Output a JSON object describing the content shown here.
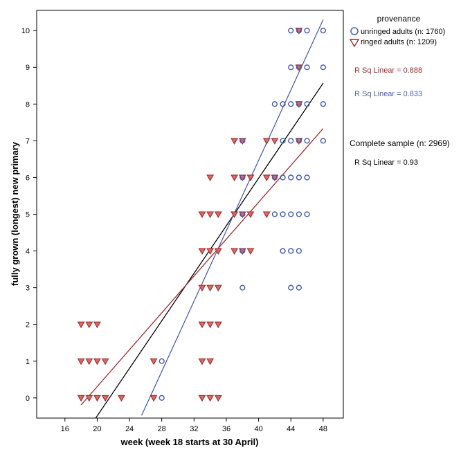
{
  "chart_data": {
    "type": "scatter",
    "xlabel": "week (week 18 starts at 30 April)",
    "ylabel": "fully grown (longest) new primary",
    "xlim": [
      12.5,
      50.5
    ],
    "ylim": [
      -0.55,
      10.55
    ],
    "x_ticks": [
      16,
      20,
      24,
      28,
      32,
      36,
      40,
      44,
      48
    ],
    "y_ticks": [
      0,
      1,
      2,
      3,
      4,
      5,
      6,
      7,
      8,
      9,
      10
    ],
    "grid": false,
    "legend_position": "right",
    "legend_title": "provenance",
    "series": [
      {
        "name": "unringed adults (n: 1760)",
        "marker": "circle",
        "color": "#4a5fb0",
        "points": [
          [
            28,
            0
          ],
          [
            28,
            1
          ],
          [
            38,
            3
          ],
          [
            38,
            4
          ],
          [
            38,
            5
          ],
          [
            38,
            6
          ],
          [
            38,
            7
          ],
          [
            42,
            5
          ],
          [
            43,
            5
          ],
          [
            44,
            5
          ],
          [
            45,
            5
          ],
          [
            46,
            5
          ],
          [
            42,
            6
          ],
          [
            43,
            6
          ],
          [
            44,
            6
          ],
          [
            45,
            6
          ],
          [
            46,
            6
          ],
          [
            43,
            7
          ],
          [
            44,
            7
          ],
          [
            45,
            7
          ],
          [
            46,
            7
          ],
          [
            48,
            7
          ],
          [
            42,
            8
          ],
          [
            43,
            8
          ],
          [
            44,
            8
          ],
          [
            45,
            8
          ],
          [
            46,
            8
          ],
          [
            48,
            8
          ],
          [
            44,
            9
          ],
          [
            45,
            9
          ],
          [
            46,
            9
          ],
          [
            48,
            9
          ],
          [
            44,
            10
          ],
          [
            45,
            10
          ],
          [
            46,
            10
          ],
          [
            48,
            10
          ],
          [
            43,
            4
          ],
          [
            44,
            4
          ],
          [
            45,
            4
          ],
          [
            44,
            3
          ],
          [
            45,
            3
          ]
        ],
        "trend": {
          "slope": 0.4789,
          "intercept": -12.69,
          "x_range": [
            25.5,
            48
          ]
        }
      },
      {
        "name": "ringed adults (n: 1209)",
        "marker": "triangle-down",
        "color": "#9e2a2a",
        "points": [
          [
            18,
            0
          ],
          [
            19,
            0
          ],
          [
            20,
            0
          ],
          [
            21,
            0
          ],
          [
            23,
            0
          ],
          [
            27,
            0
          ],
          [
            33,
            0
          ],
          [
            34,
            0
          ],
          [
            35,
            0
          ],
          [
            18,
            1
          ],
          [
            19,
            1
          ],
          [
            20,
            1
          ],
          [
            21,
            1
          ],
          [
            27,
            1
          ],
          [
            33,
            1
          ],
          [
            34,
            1
          ],
          [
            18,
            2
          ],
          [
            19,
            2
          ],
          [
            20,
            2
          ],
          [
            33,
            2
          ],
          [
            34,
            2
          ],
          [
            35,
            2
          ],
          [
            33,
            3
          ],
          [
            34,
            3
          ],
          [
            35,
            3
          ],
          [
            33,
            4
          ],
          [
            34,
            4
          ],
          [
            35,
            4
          ],
          [
            37,
            4
          ],
          [
            38,
            4
          ],
          [
            39,
            4
          ],
          [
            33,
            5
          ],
          [
            34,
            5
          ],
          [
            35,
            5
          ],
          [
            37,
            5
          ],
          [
            38,
            5
          ],
          [
            39,
            5
          ],
          [
            41,
            5
          ],
          [
            34,
            6
          ],
          [
            37,
            6
          ],
          [
            38,
            6
          ],
          [
            39,
            6
          ],
          [
            41,
            6
          ],
          [
            42,
            6
          ],
          [
            37,
            7
          ],
          [
            38,
            7
          ],
          [
            41,
            7
          ],
          [
            42,
            7
          ],
          [
            45,
            7
          ],
          [
            45,
            8
          ],
          [
            45,
            9
          ],
          [
            45,
            10
          ]
        ],
        "trend": {
          "slope": 0.2509,
          "intercept": -4.71,
          "x_range": [
            18,
            48
          ]
        }
      }
    ],
    "overall_trend": {
      "slope": 0.3235,
      "intercept": -6.96,
      "x_range": [
        18.2,
        48
      ],
      "color": "#000000"
    },
    "annotations": [
      {
        "text": "R Sq Linear = 0.888",
        "color": "#9e2a2a"
      },
      {
        "text": "R Sq Linear = 0.833",
        "color": "#4a5fb0"
      },
      {
        "text": "Complete sample (n: 2969)",
        "color": "#000000"
      },
      {
        "text": "R Sq Linear = 0.93",
        "color": "#000000"
      }
    ]
  }
}
